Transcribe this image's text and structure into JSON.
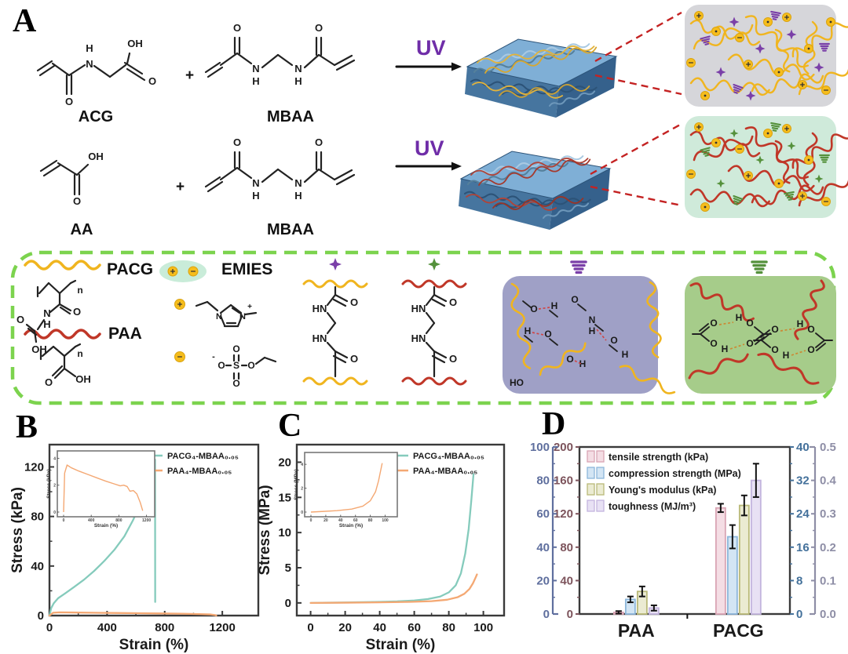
{
  "figure": {
    "background": "#ffffff"
  },
  "panel_labels": {
    "a": "A",
    "b": "B",
    "c": "C",
    "d": "D"
  },
  "panel_a": {
    "molecules": {
      "acg": "ACG",
      "mbaa_top": "MBAA",
      "aa": "AA",
      "mbaa_bottom": "MBAA"
    },
    "uv_top": "UV",
    "uv_bottom": "UV",
    "plus_top": "+",
    "plus_bottom": "+",
    "atoms": {
      "O": "O",
      "OH": "OH",
      "N": "N",
      "H": "H",
      "HN": "HN",
      "HO": "HO",
      "S": "S",
      "n": "n",
      "plus": "+",
      "minus": "-"
    },
    "legend": {
      "pacg": "PACG",
      "paa": "PAA",
      "emies": "EMIES"
    },
    "colors": {
      "pacg_chain": "#f0b51f",
      "paa_chain": "#c03728",
      "purple_crosslink": "#7a3fa8",
      "green_crosslink": "#55913c",
      "ion_dot": "#f6bd1c",
      "uv_text": "#6f2da8",
      "connector_red": "#c42222",
      "network_box_top_bg": "#d6d6da",
      "network_box_bottom_bg": "#cfeada",
      "hbond_box_purple_bg": "#9fa0c6",
      "hbond_box_green_bg": "#a6cc8a",
      "legend_border_green": "#7cd34e",
      "cube_top": "#7fafd6",
      "cube_front": "#46759f",
      "cube_side": "#35618c"
    }
  },
  "chart_data": [
    {
      "id": "B",
      "type": "line",
      "xlabel": "Strain (%)",
      "ylabel": "Stress (kPa)",
      "xlim": [
        0,
        1450
      ],
      "ylim": [
        0,
        138
      ],
      "xticks": [
        0,
        400,
        800,
        1200
      ],
      "yticks": [
        0,
        40,
        80,
        120
      ],
      "grid": false,
      "legend_position": "top-right",
      "series": [
        {
          "name": "PACG₄-MBAA₀.₀₅",
          "color": "#85cbbc",
          "x": [
            0,
            12,
            30,
            60,
            110,
            170,
            240,
            310,
            380,
            450,
            520,
            580,
            635,
            680,
            712,
            728,
            733,
            734
          ],
          "y": [
            0,
            6,
            10,
            14,
            18,
            23,
            29,
            36,
            44,
            53,
            64,
            77,
            91,
            104,
            115,
            123,
            126,
            11
          ]
        },
        {
          "name": "PAA₄-MBAA₀.₀₅",
          "color": "#f4a873",
          "x": [
            0,
            25,
            70,
            160,
            300,
            460,
            620,
            780,
            920,
            1040,
            1120,
            1150,
            1158
          ],
          "y": [
            0,
            2.3,
            2.6,
            2.5,
            2.3,
            2.1,
            1.9,
            1.7,
            1.5,
            1.2,
            0.9,
            0.4,
            0.05
          ]
        }
      ],
      "inset": {
        "xlabel": "Strain (%)",
        "ylabel": "Stress (kPa)",
        "xlim": [
          0,
          1250
        ],
        "ylim": [
          0,
          4.2
        ],
        "xticks": [
          0,
          400,
          800,
          1200
        ],
        "yticks": [
          0,
          2,
          4
        ],
        "series": [
          {
            "color": "#f4a873",
            "x": [
              0,
              15,
              50,
              110,
              220,
              350,
              480,
              610,
              730,
              820,
              870,
              920,
              960,
              1010,
              1060,
              1110,
              1145
            ],
            "y": [
              0,
              2.9,
              3.5,
              3.3,
              3.05,
              2.8,
              2.55,
              2.3,
              2.1,
              1.95,
              2.0,
              1.9,
              1.55,
              1.6,
              1.35,
              0.7,
              0.1
            ]
          }
        ]
      }
    },
    {
      "id": "C",
      "type": "line",
      "xlabel": "Strain (%)",
      "ylabel": "Stress (MPa)",
      "xlim": [
        -8,
        112
      ],
      "ylim": [
        -1.8,
        22.5
      ],
      "xticks": [
        0,
        20,
        40,
        60,
        80,
        100
      ],
      "yticks": [
        0,
        5,
        10,
        15,
        20
      ],
      "grid": false,
      "legend_position": "top-right",
      "series": [
        {
          "name": "PACG₄-MBAA₀.₀₅",
          "color": "#85cbbc",
          "x": [
            0,
            10,
            20,
            30,
            40,
            50,
            60,
            68,
            75,
            80,
            84,
            87,
            89.5,
            91.5,
            93,
            94.3
          ],
          "y": [
            0,
            0.03,
            0.06,
            0.1,
            0.15,
            0.22,
            0.35,
            0.55,
            0.9,
            1.5,
            2.5,
            4.2,
            7,
            10.5,
            14.5,
            18.3
          ]
        },
        {
          "name": "PAA₄-MBAA₀.₀₅",
          "color": "#f4a873",
          "x": [
            0,
            20,
            40,
            58,
            70,
            79,
            85,
            89,
            92,
            94,
            95.5,
            96.3
          ],
          "y": [
            0,
            0.03,
            0.08,
            0.15,
            0.25,
            0.45,
            0.8,
            1.3,
            2.0,
            2.8,
            3.6,
            4.05
          ]
        }
      ],
      "inset": {
        "xlabel": "Strain (%)",
        "ylabel": "Stress (MPa)",
        "xlim": [
          0,
          110
        ],
        "ylim": [
          0,
          4.6
        ],
        "xticks": [
          0,
          20,
          40,
          60,
          80,
          100
        ],
        "yticks": [
          0,
          2,
          4
        ],
        "series": [
          {
            "color": "#f4a873",
            "x": [
              0,
              15,
              35,
              55,
              70,
              80,
              87,
              91,
              94,
              96
            ],
            "y": [
              0,
              0.05,
              0.12,
              0.25,
              0.5,
              0.95,
              1.7,
              2.6,
              3.5,
              4.1
            ]
          }
        ]
      }
    },
    {
      "id": "D",
      "type": "bar",
      "categories": [
        "PAA",
        "PACG"
      ],
      "axes": {
        "left_outer": {
          "ticks": [
            0,
            20,
            40,
            60,
            80,
            100
          ],
          "range": [
            0,
            100
          ],
          "color": "#5f6f9e"
        },
        "left_inner": {
          "ticks": [
            0,
            40,
            80,
            120,
            160,
            200
          ],
          "range": [
            0,
            200
          ],
          "color": "#7d545c"
        },
        "right_inner": {
          "ticks": [
            0,
            8,
            16,
            24,
            32,
            40
          ],
          "range": [
            0,
            40
          ],
          "color": "#44719b"
        },
        "right_outer": {
          "ticks": [
            "0.0",
            "0.1",
            "0.2",
            "0.3",
            "0.4",
            "0.5"
          ],
          "range": [
            0,
            0.5
          ],
          "color": "#8e8ea6"
        }
      },
      "series": [
        {
          "name": "tensile strength (kPa)",
          "axis": "left_inner",
          "fill": "#f4dde4",
          "edge": "#d9a4b4",
          "values": [
            2,
            127
          ],
          "errors": [
            1.5,
            5
          ]
        },
        {
          "name": "compression strength (MPa)",
          "axis": "right_inner",
          "fill": "#d3e5f4",
          "edge": "#8cb6da",
          "values": [
            3.5,
            18.5
          ],
          "errors": [
            0.7,
            2.8
          ]
        },
        {
          "name": "Young's modulus (kPa)",
          "axis": "left_outer",
          "fill": "#ebebd2",
          "edge": "#b9b978",
          "values": [
            13.5,
            65
          ],
          "errors": [
            3,
            6
          ]
        },
        {
          "name": "toughness (MJ/m³)",
          "axis": "right_outer",
          "fill": "#e8e1f4",
          "edge": "#c3b4de",
          "values": [
            0.018,
            0.4
          ],
          "errors": [
            0.008,
            0.05
          ]
        }
      ]
    }
  ]
}
